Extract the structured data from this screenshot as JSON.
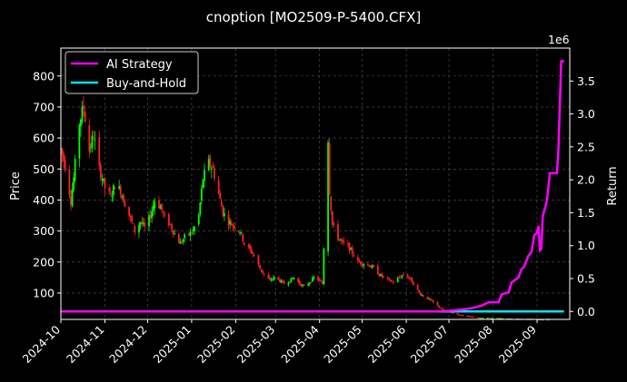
{
  "chart_data": {
    "type": "candlestick",
    "title": "cnoption [MO2509-P-5400.CFX]",
    "ylabel_left": "Price",
    "ylabel_right": "Return",
    "right_axis_multiplier": "1e6",
    "grid": true,
    "legend_position": "top-left",
    "colors": {
      "background": "#000000",
      "up_candle": "#00ff00",
      "down_candle": "#ff2020",
      "ai_strategy": "#ff00ff",
      "buy_and_hold": "#00e5ee",
      "grid": "#555555"
    },
    "x_ticks": [
      "2024-10",
      "2024-11",
      "2024-12",
      "2025-01",
      "2025-02",
      "2025-03",
      "2025-04",
      "2025-05",
      "2025-06",
      "2025-07",
      "2025-08",
      "2025-09"
    ],
    "x_range": [
      "2024-10-01",
      "2025-09-24"
    ],
    "y_ticks_left": [
      100,
      200,
      300,
      400,
      500,
      600,
      700,
      800
    ],
    "ylim_left": [
      15,
      890
    ],
    "y_ticks_right": [
      "0.0",
      "0.5",
      "1.0",
      "1.5",
      "2.0",
      "2.5",
      "3.0",
      "3.5"
    ],
    "ylim_right": [
      -0.12,
      4.0
    ],
    "price_path": [
      [
        "2024-10-01",
        565
      ],
      [
        "2024-10-04",
        510
      ],
      [
        "2024-10-08",
        400
      ],
      [
        "2024-10-10",
        470
      ],
      [
        "2024-10-14",
        650
      ],
      [
        "2024-10-17",
        700
      ],
      [
        "2024-10-21",
        560
      ],
      [
        "2024-10-24",
        610
      ],
      [
        "2024-10-28",
        500
      ],
      [
        "2024-11-01",
        440
      ],
      [
        "2024-11-05",
        410
      ],
      [
        "2024-11-08",
        450
      ],
      [
        "2024-11-12",
        430
      ],
      [
        "2024-11-15",
        390
      ],
      [
        "2024-11-19",
        340
      ],
      [
        "2024-11-22",
        300
      ],
      [
        "2024-11-26",
        330
      ],
      [
        "2024-11-29",
        310
      ],
      [
        "2024-12-03",
        350
      ],
      [
        "2024-12-06",
        400
      ],
      [
        "2024-12-10",
        380
      ],
      [
        "2024-12-13",
        340
      ],
      [
        "2024-12-17",
        320
      ],
      [
        "2024-12-20",
        290
      ],
      [
        "2024-12-24",
        260
      ],
      [
        "2024-12-27",
        280
      ],
      [
        "2025-01-02",
        300
      ],
      [
        "2025-01-06",
        350
      ],
      [
        "2025-01-09",
        470
      ],
      [
        "2025-01-13",
        520
      ],
      [
        "2025-01-16",
        500
      ],
      [
        "2025-01-20",
        420
      ],
      [
        "2025-01-23",
        360
      ],
      [
        "2025-01-27",
        330
      ],
      [
        "2025-02-04",
        300
      ],
      [
        "2025-02-07",
        260
      ],
      [
        "2025-02-11",
        240
      ],
      [
        "2025-02-14",
        220
      ],
      [
        "2025-02-18",
        180
      ],
      [
        "2025-02-21",
        160
      ],
      [
        "2025-02-25",
        140
      ],
      [
        "2025-02-28",
        150
      ],
      [
        "2025-03-04",
        140
      ],
      [
        "2025-03-07",
        130
      ],
      [
        "2025-03-11",
        140
      ],
      [
        "2025-03-14",
        150
      ],
      [
        "2025-03-18",
        130
      ],
      [
        "2025-03-21",
        120
      ],
      [
        "2025-03-25",
        135
      ],
      [
        "2025-03-28",
        150
      ],
      [
        "2025-04-01",
        140
      ],
      [
        "2025-04-03",
        130
      ],
      [
        "2025-04-07",
        600
      ],
      [
        "2025-04-08",
        430
      ],
      [
        "2025-04-10",
        320
      ],
      [
        "2025-04-14",
        280
      ],
      [
        "2025-04-17",
        260
      ],
      [
        "2025-04-21",
        250
      ],
      [
        "2025-04-24",
        230
      ],
      [
        "2025-04-28",
        200
      ],
      [
        "2025-05-06",
        190
      ],
      [
        "2025-05-09",
        180
      ],
      [
        "2025-05-13",
        160
      ],
      [
        "2025-05-16",
        150
      ],
      [
        "2025-05-20",
        140
      ],
      [
        "2025-05-23",
        135
      ],
      [
        "2025-05-27",
        150
      ],
      [
        "2025-05-30",
        160
      ],
      [
        "2025-06-03",
        150
      ],
      [
        "2025-06-06",
        130
      ],
      [
        "2025-06-10",
        100
      ],
      [
        "2025-06-13",
        90
      ],
      [
        "2025-06-17",
        80
      ],
      [
        "2025-06-20",
        70
      ],
      [
        "2025-06-24",
        55
      ],
      [
        "2025-06-27",
        45
      ],
      [
        "2025-07-01",
        40
      ],
      [
        "2025-07-04",
        35
      ],
      [
        "2025-07-08",
        30
      ],
      [
        "2025-07-11",
        28
      ],
      [
        "2025-07-15",
        25
      ],
      [
        "2025-07-18",
        22
      ],
      [
        "2025-07-22",
        20
      ],
      [
        "2025-07-25",
        20
      ],
      [
        "2025-07-29",
        19
      ],
      [
        "2025-08-01",
        18
      ],
      [
        "2025-08-05",
        18
      ],
      [
        "2025-08-08",
        18
      ],
      [
        "2025-08-12",
        17
      ],
      [
        "2025-08-15",
        17
      ],
      [
        "2025-08-19",
        16
      ],
      [
        "2025-08-22",
        16
      ],
      [
        "2025-08-26",
        16
      ],
      [
        "2025-08-29",
        16
      ],
      [
        "2025-09-02",
        15
      ],
      [
        "2025-09-05",
        15
      ],
      [
        "2025-09-09",
        15
      ]
    ],
    "series": [
      {
        "name": "AI Strategy",
        "axis": "right",
        "points": [
          [
            "2024-10-01",
            0.0
          ],
          [
            "2025-06-20",
            0.0
          ],
          [
            "2025-07-01",
            0.01
          ],
          [
            "2025-07-10",
            0.03
          ],
          [
            "2025-07-17",
            0.05
          ],
          [
            "2025-07-24",
            0.09
          ],
          [
            "2025-07-29",
            0.14
          ],
          [
            "2025-08-05",
            0.14
          ],
          [
            "2025-08-07",
            0.26
          ],
          [
            "2025-08-12",
            0.29
          ],
          [
            "2025-08-14",
            0.44
          ],
          [
            "2025-08-19",
            0.52
          ],
          [
            "2025-08-21",
            0.64
          ],
          [
            "2025-08-23",
            0.68
          ],
          [
            "2025-08-26",
            0.85
          ],
          [
            "2025-08-28",
            0.9
          ],
          [
            "2025-08-30",
            1.15
          ],
          [
            "2025-09-01",
            1.2
          ],
          [
            "2025-09-02",
            1.3
          ],
          [
            "2025-09-03",
            0.93
          ],
          [
            "2025-09-04",
            0.95
          ],
          [
            "2025-09-05",
            1.45
          ],
          [
            "2025-09-07",
            1.6
          ],
          [
            "2025-09-08",
            1.7
          ],
          [
            "2025-09-10",
            2.1
          ],
          [
            "2025-09-13",
            2.1
          ],
          [
            "2025-09-15",
            2.1
          ],
          [
            "2025-09-16",
            2.45
          ],
          [
            "2025-09-17",
            3.15
          ],
          [
            "2025-09-18",
            3.8
          ],
          [
            "2025-09-20",
            3.8
          ]
        ]
      },
      {
        "name": "Buy-and-Hold",
        "axis": "right",
        "points": [
          [
            "2024-10-01",
            0.0
          ],
          [
            "2025-09-20",
            0.0
          ]
        ]
      }
    ]
  }
}
